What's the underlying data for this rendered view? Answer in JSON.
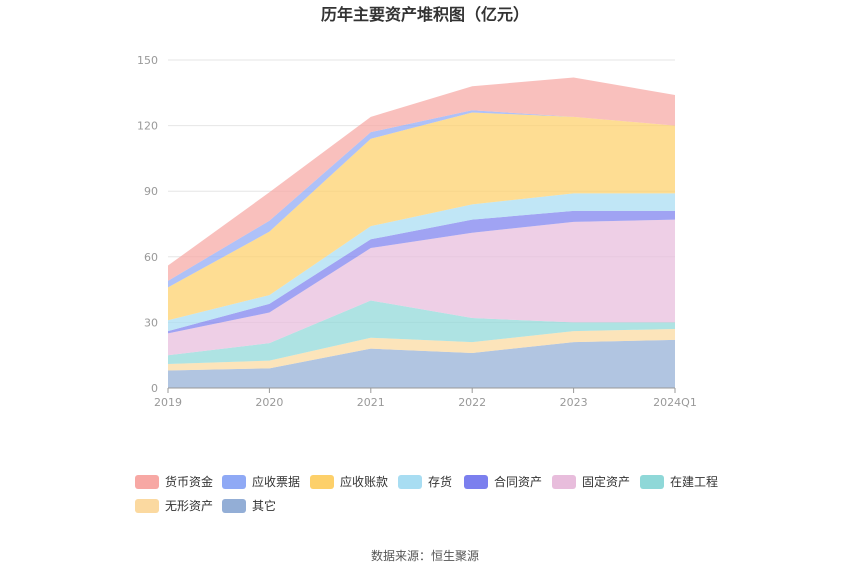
{
  "chart_data": {
    "type": "area",
    "stacked": true,
    "title": "历年主要资产堆积图（亿元）",
    "categories": [
      "2019",
      "2020",
      "2021",
      "2022",
      "2023",
      "2024Q1"
    ],
    "ylim": [
      0,
      150
    ],
    "yticks": [
      0,
      30,
      60,
      90,
      120,
      150
    ],
    "grid": true,
    "legend_position": "bottom",
    "series": [
      {
        "name": "其它",
        "color": "#93aed6",
        "values": [
          8,
          9,
          18,
          16,
          21,
          22
        ]
      },
      {
        "name": "无形资产",
        "color": "#fbd9a0",
        "values": [
          3,
          3.5,
          5,
          5,
          5,
          5
        ]
      },
      {
        "name": "在建工程",
        "color": "#8fd8d8",
        "values": [
          4,
          8,
          17,
          11,
          4,
          3
        ]
      },
      {
        "name": "固定资产",
        "color": "#e8bddc",
        "values": [
          10,
          14,
          24,
          39,
          46,
          47
        ]
      },
      {
        "name": "合同资产",
        "color": "#7b7fee",
        "values": [
          1,
          4,
          4,
          6,
          5,
          4
        ]
      },
      {
        "name": "存货",
        "color": "#a8ddf2",
        "values": [
          5,
          4,
          6,
          7,
          8,
          8
        ]
      },
      {
        "name": "应收账款",
        "color": "#fdd06a",
        "values": [
          15,
          29,
          40,
          42,
          35,
          31
        ]
      },
      {
        "name": "应收票据",
        "color": "#8fa9f5",
        "values": [
          3,
          5,
          3,
          1,
          0,
          0
        ]
      },
      {
        "name": "货币资金",
        "color": "#f7a8a4",
        "values": [
          7,
          13,
          7,
          11,
          18,
          14
        ]
      }
    ],
    "legend_order": [
      "货币资金",
      "应收票据",
      "应收账款",
      "存货",
      "合同资产",
      "固定资产",
      "在建工程",
      "无形资产",
      "其它"
    ],
    "source": "数据来源：恒生聚源"
  }
}
